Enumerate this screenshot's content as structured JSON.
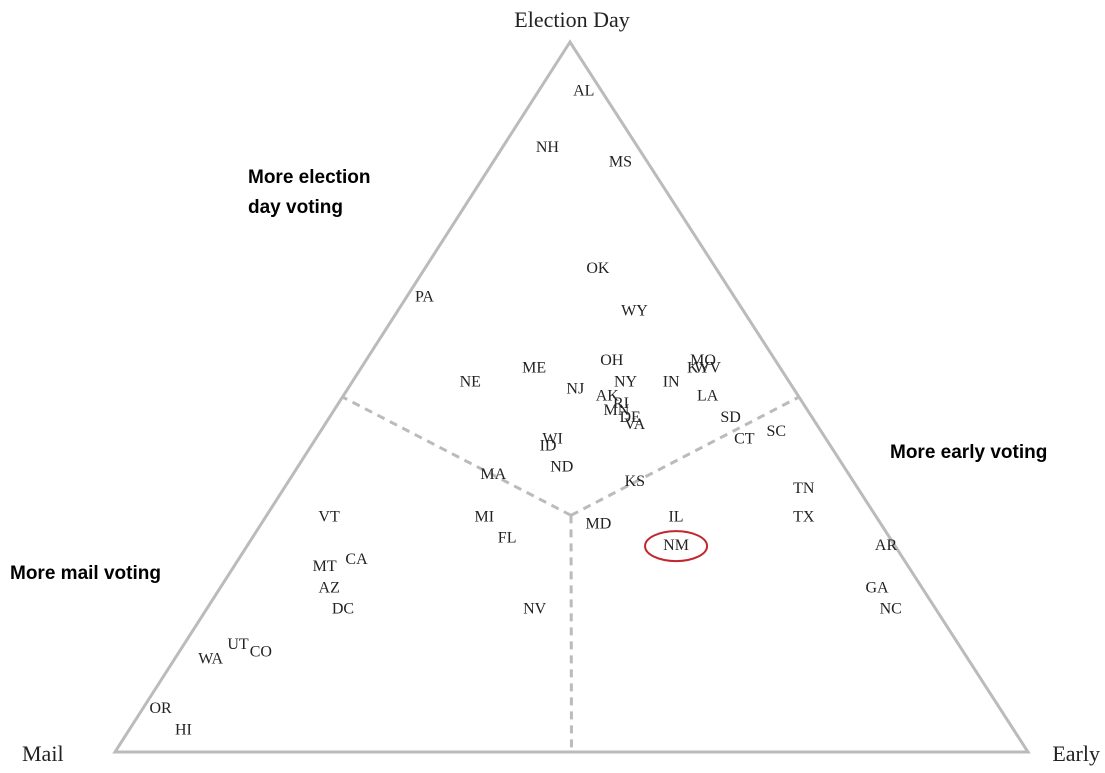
{
  "chart_data": {
    "type": "ternary",
    "axes": {
      "top": "Election Day",
      "left": "Mail",
      "right": "Early"
    },
    "highlighted": "NM",
    "highlight_color": "#c0282d",
    "annotations": [
      {
        "lines": [
          "More election",
          "day voting"
        ],
        "corner": "top"
      },
      {
        "lines": [
          "More mail voting"
        ],
        "corner": "left"
      },
      {
        "lines": [
          "More early voting"
        ],
        "corner": "right"
      }
    ],
    "points": [
      {
        "label": "AL",
        "election_day": 93,
        "mail": 2,
        "early": 5
      },
      {
        "label": "NH",
        "election_day": 85,
        "mail": 10,
        "early": 5
      },
      {
        "label": "MS",
        "election_day": 83,
        "mail": 3,
        "early": 14
      },
      {
        "label": "OK",
        "election_day": 68,
        "mail": 13,
        "early": 19
      },
      {
        "label": "PA",
        "election_day": 64,
        "mail": 34,
        "early": 2
      },
      {
        "label": "WY",
        "election_day": 62,
        "mail": 12,
        "early": 26
      },
      {
        "label": "MO",
        "election_day": 55,
        "mail": 8,
        "early": 37
      },
      {
        "label": "KY",
        "election_day": 54,
        "mail": 9,
        "early": 37
      },
      {
        "label": "WV",
        "election_day": 54,
        "mail": 8,
        "early": 38
      },
      {
        "label": "OH",
        "election_day": 55,
        "mail": 18,
        "early": 27
      },
      {
        "label": "ME",
        "election_day": 54,
        "mail": 27,
        "early": 19
      },
      {
        "label": "NE",
        "election_day": 52,
        "mail": 35,
        "early": 13
      },
      {
        "label": "NY",
        "election_day": 52,
        "mail": 18,
        "early": 30
      },
      {
        "label": "IN",
        "election_day": 52,
        "mail": 13,
        "early": 35
      },
      {
        "label": "NJ",
        "election_day": 51,
        "mail": 24,
        "early": 25
      },
      {
        "label": "AK",
        "election_day": 50,
        "mail": 21,
        "early": 29
      },
      {
        "label": "RI",
        "election_day": 49,
        "mail": 20,
        "early": 31
      },
      {
        "label": "LA",
        "election_day": 50,
        "mail": 10,
        "early": 40
      },
      {
        "label": "MN",
        "election_day": 48,
        "mail": 21,
        "early": 31
      },
      {
        "label": "DE",
        "election_day": 47,
        "mail": 20,
        "early": 33
      },
      {
        "label": "VA",
        "election_day": 46,
        "mail": 20,
        "early": 34
      },
      {
        "label": "SD",
        "election_day": 47,
        "mail": 9,
        "early": 44
      },
      {
        "label": "CT",
        "election_day": 44,
        "mail": 9,
        "early": 47
      },
      {
        "label": "SC",
        "election_day": 45,
        "mail": 5,
        "early": 50
      },
      {
        "label": "WI",
        "election_day": 44,
        "mail": 30,
        "early": 26
      },
      {
        "label": "ID",
        "election_day": 43,
        "mail": 31,
        "early": 26
      },
      {
        "label": "MA",
        "election_day": 39,
        "mail": 39,
        "early": 22
      },
      {
        "label": "ND",
        "election_day": 40,
        "mail": 31,
        "early": 29
      },
      {
        "label": "KS",
        "election_day": 38,
        "mail": 24,
        "early": 38
      },
      {
        "label": "TN",
        "election_day": 37,
        "mail": 6,
        "early": 57
      },
      {
        "label": "TX",
        "election_day": 33,
        "mail": 8,
        "early": 59
      },
      {
        "label": "IL",
        "election_day": 33,
        "mail": 22,
        "early": 45
      },
      {
        "label": "VT",
        "election_day": 33,
        "mail": 60,
        "early": 7
      },
      {
        "label": "MI",
        "election_day": 33,
        "mail": 43,
        "early": 24
      },
      {
        "label": "MD",
        "election_day": 32,
        "mail": 31,
        "early": 37
      },
      {
        "label": "FL",
        "election_day": 30,
        "mail": 42,
        "early": 28
      },
      {
        "label": "NM",
        "election_day": 29,
        "mail": 24,
        "early": 47
      },
      {
        "label": "AR",
        "election_day": 29,
        "mail": 1,
        "early": 70
      },
      {
        "label": "CA",
        "election_day": 27,
        "mail": 60,
        "early": 13
      },
      {
        "label": "MT",
        "election_day": 26,
        "mail": 64,
        "early": 10
      },
      {
        "label": "AZ",
        "election_day": 23,
        "mail": 65,
        "early": 12
      },
      {
        "label": "GA",
        "election_day": 23,
        "mail": 5,
        "early": 72
      },
      {
        "label": "DC",
        "election_day": 20,
        "mail": 65,
        "early": 15
      },
      {
        "label": "NV",
        "election_day": 20,
        "mail": 44,
        "early": 36
      },
      {
        "label": "NC",
        "election_day": 20,
        "mail": 5,
        "early": 75
      },
      {
        "label": "UT",
        "election_day": 15,
        "mail": 79,
        "early": 6
      },
      {
        "label": "CO",
        "election_day": 14,
        "mail": 77,
        "early": 9
      },
      {
        "label": "WA",
        "election_day": 13,
        "mail": 83,
        "early": 4
      },
      {
        "label": "OR",
        "election_day": 6,
        "mail": 92,
        "early": 2
      },
      {
        "label": "HI",
        "election_day": 3,
        "mail": 91,
        "early": 6
      }
    ]
  }
}
